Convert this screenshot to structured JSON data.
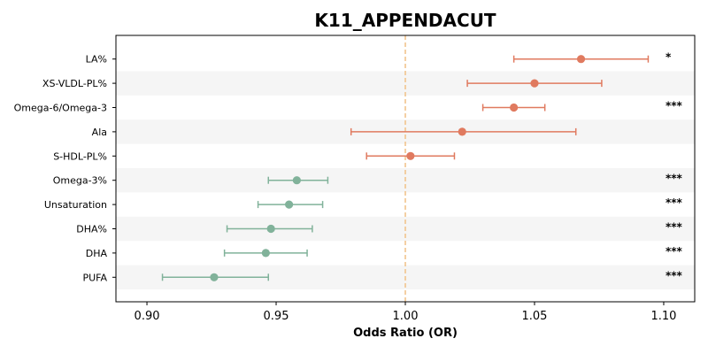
{
  "chart_data": {
    "type": "forest",
    "title": "K11_APPENDACUT",
    "xlabel": "Odds Ratio (OR)",
    "ylabel": "",
    "xlim": [
      0.888,
      1.112
    ],
    "xticks": [
      0.9,
      0.95,
      1.0,
      1.05,
      1.1
    ],
    "xtick_labels": [
      "0.90",
      "0.95",
      "1.00",
      "1.05",
      "1.10"
    ],
    "reference_line": 1.0,
    "grid": false,
    "alternating_row_shading": true,
    "colors": {
      "positive": "#e07a5f",
      "negative": "#81b29a",
      "reference_line": "#f2c48d",
      "row_shade": "#f5f5f5"
    },
    "rows": [
      {
        "label": "LA%",
        "or": 1.068,
        "lower": 1.042,
        "upper": 1.094,
        "sig": "*"
      },
      {
        "label": "XS-VLDL-PL%",
        "or": 1.05,
        "lower": 1.024,
        "upper": 1.076,
        "sig": ""
      },
      {
        "label": "Omega-6/Omega-3",
        "or": 1.042,
        "lower": 1.03,
        "upper": 1.054,
        "sig": "***"
      },
      {
        "label": "Ala",
        "or": 1.022,
        "lower": 0.979,
        "upper": 1.066,
        "sig": ""
      },
      {
        "label": "S-HDL-PL%",
        "or": 1.002,
        "lower": 0.985,
        "upper": 1.019,
        "sig": ""
      },
      {
        "label": "Omega-3%",
        "or": 0.958,
        "lower": 0.947,
        "upper": 0.97,
        "sig": "***"
      },
      {
        "label": "Unsaturation",
        "or": 0.955,
        "lower": 0.943,
        "upper": 0.968,
        "sig": "***"
      },
      {
        "label": "DHA%",
        "or": 0.948,
        "lower": 0.931,
        "upper": 0.964,
        "sig": "***"
      },
      {
        "label": "DHA",
        "or": 0.946,
        "lower": 0.93,
        "upper": 0.962,
        "sig": "***"
      },
      {
        "label": "PUFA",
        "or": 0.926,
        "lower": 0.906,
        "upper": 0.947,
        "sig": "***"
      }
    ]
  }
}
